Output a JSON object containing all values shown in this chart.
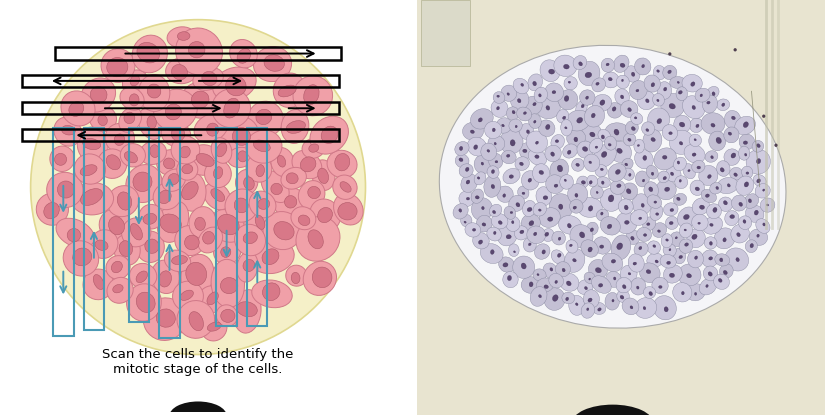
{
  "fig_width": 8.25,
  "fig_height": 4.15,
  "dpi": 100,
  "bg_color": "#ffffff",
  "left_panel_bg": "#ffffff",
  "circle_fill": "#f5f0c8",
  "circle_edge": "#e0d890",
  "cell_fill": "#f0a0a8",
  "cell_edge": "#d07888",
  "nucleus_fill": "#d87888",
  "nucleus_edge": "#b05868",
  "blue_color": "#4a9ab5",
  "black_color": "#111111",
  "caption": "Scan the cells to identify the\nmitotic stage of the cells.",
  "caption_fontsize": 9.5,
  "right_bg": "#d8d4c0",
  "micro_cell_colors": [
    "#c8c4d8",
    "#ccc8dc",
    "#d0cce0",
    "#c4c0d4"
  ],
  "micro_nucleus_fill": "#5a4870",
  "micro_nucleus_edge": "#3a2850",
  "slide_bg": "#e8e4d0"
}
